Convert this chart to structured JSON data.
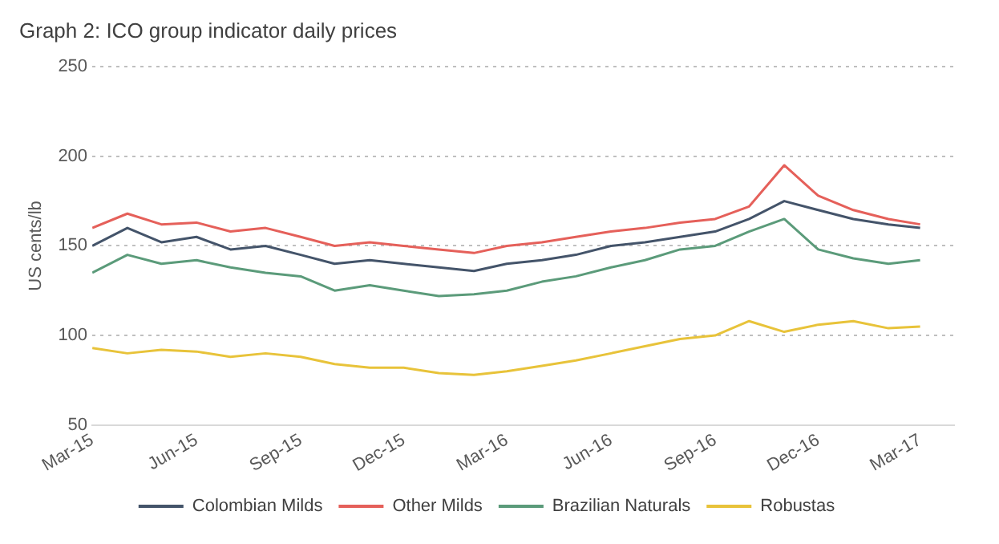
{
  "chart_data": {
    "type": "line",
    "title": "Graph 2: ICO group indicator daily prices",
    "ylabel": "US cents/lb",
    "x": [
      "2015-03-01",
      "2015-04-01",
      "2015-05-01",
      "2015-06-01",
      "2015-07-01",
      "2015-08-01",
      "2015-09-01",
      "2015-10-01",
      "2015-11-01",
      "2015-12-01",
      "2016-01-01",
      "2016-02-01",
      "2016-03-01",
      "2016-04-01",
      "2016-05-01",
      "2016-06-01",
      "2016-07-01",
      "2016-08-01",
      "2016-09-01",
      "2016-10-01",
      "2016-11-01",
      "2016-12-01",
      "2017-01-01",
      "2017-02-01",
      "2017-03-01"
    ],
    "series": [
      {
        "name": "Colombian Milds",
        "color": "#44546a",
        "values": [
          150,
          160,
          152,
          155,
          148,
          150,
          145,
          140,
          142,
          140,
          138,
          136,
          140,
          142,
          145,
          150,
          152,
          155,
          158,
          165,
          175,
          170,
          165,
          162,
          160
        ]
      },
      {
        "name": "Other Milds",
        "color": "#e5605a",
        "values": [
          160,
          168,
          162,
          163,
          158,
          160,
          155,
          150,
          152,
          150,
          148,
          146,
          150,
          152,
          155,
          158,
          160,
          163,
          165,
          172,
          195,
          178,
          170,
          165,
          162
        ]
      },
      {
        "name": "Brazilian Naturals",
        "color": "#5b9b7a",
        "values": [
          135,
          145,
          140,
          142,
          138,
          135,
          133,
          125,
          128,
          125,
          122,
          123,
          125,
          130,
          133,
          138,
          142,
          148,
          150,
          158,
          165,
          148,
          143,
          140,
          142
        ]
      },
      {
        "name": "Robustas",
        "color": "#e8c33a",
        "values": [
          93,
          90,
          92,
          91,
          88,
          90,
          88,
          84,
          82,
          82,
          79,
          78,
          80,
          83,
          86,
          90,
          94,
          98,
          100,
          108,
          102,
          106,
          108,
          104,
          105
        ]
      }
    ],
    "xlim": [
      "2015-03-01",
      "2017-03-31"
    ],
    "xticks": [
      {
        "value": "2015-03-01",
        "label": "Mar-15"
      },
      {
        "value": "2015-06-01",
        "label": "Jun-15"
      },
      {
        "value": "2015-09-01",
        "label": "Sep-15"
      },
      {
        "value": "2015-12-01",
        "label": "Dec-15"
      },
      {
        "value": "2016-03-01",
        "label": "Mar-16"
      },
      {
        "value": "2016-06-01",
        "label": "Jun-16"
      },
      {
        "value": "2016-09-01",
        "label": "Sep-16"
      },
      {
        "value": "2016-12-01",
        "label": "Dec-16"
      },
      {
        "value": "2017-03-01",
        "label": "Mar-17"
      }
    ],
    "ylim": [
      50,
      250
    ],
    "yticks": [
      50,
      100,
      150,
      200,
      250
    ],
    "grid": "y",
    "legend": "bottom",
    "marker": "none",
    "line_style": "solid"
  }
}
